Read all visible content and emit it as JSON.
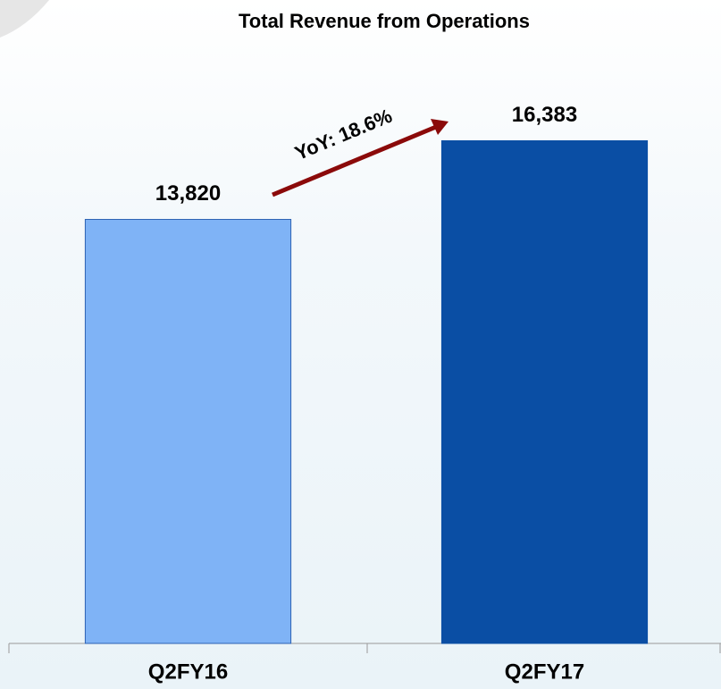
{
  "chart_data": {
    "type": "bar",
    "title": "Total Revenue from Operations",
    "categories": [
      "Q2FY16",
      "Q2FY17"
    ],
    "values": [
      13820,
      16383
    ],
    "value_labels": [
      "13,820",
      "16,383"
    ],
    "colors": [
      "#7fb3f6",
      "#0a4ea4"
    ],
    "annotation": "YoY: 18.6%",
    "ylim": [
      0,
      18000
    ]
  }
}
